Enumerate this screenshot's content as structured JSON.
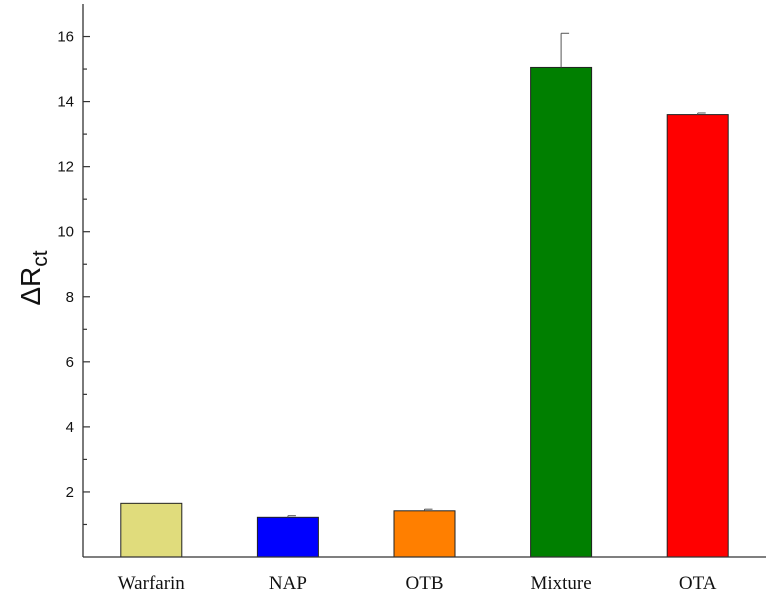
{
  "chart_data": {
    "type": "bar",
    "title": "",
    "xlabel": "",
    "ylabel": {
      "main": "ΔR",
      "subscript": "ct"
    },
    "categories": [
      "Warfarin",
      "NAP",
      "OTB",
      "Mixture",
      "OTA"
    ],
    "values": [
      1.65,
      1.22,
      1.42,
      15.05,
      13.6
    ],
    "errors": [
      0.0,
      0.05,
      0.05,
      1.05,
      0.05
    ],
    "colors": [
      "#e0dc7c",
      "#0000ff",
      "#ff7f00",
      "#007f00",
      "#ff0000"
    ],
    "ylim": [
      0,
      17
    ],
    "yticks": [
      2,
      4,
      6,
      8,
      10,
      12,
      14,
      16
    ],
    "grid": false,
    "legend": "none"
  }
}
